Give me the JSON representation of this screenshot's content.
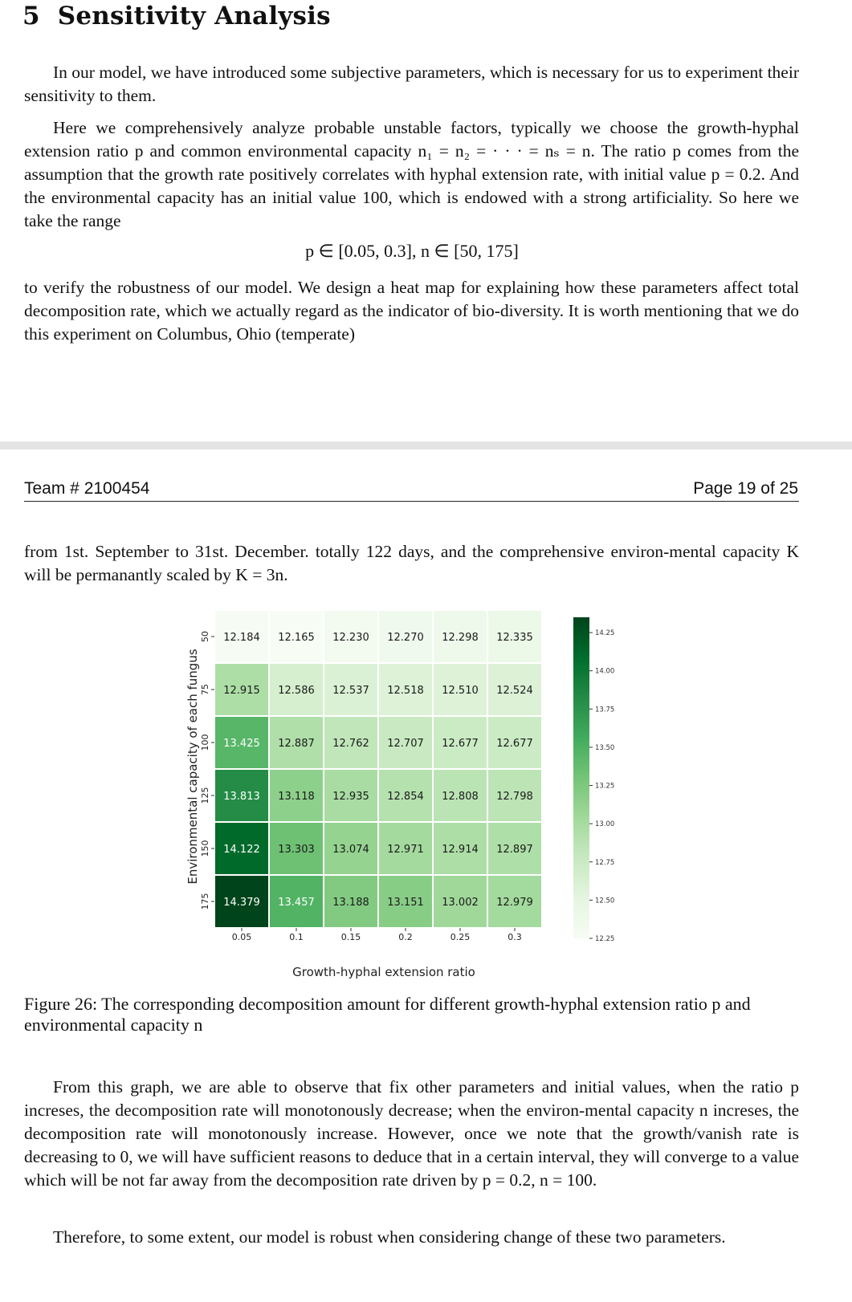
{
  "section": {
    "number": "5",
    "title": "Sensitivity Analysis"
  },
  "paragraphs": {
    "p1": "In our model, we have introduced some subjective parameters, which is necessary for us to experiment their sensitivity to them.",
    "p2": "Here we comprehensively analyze probable unstable factors, typically we choose the growth-hyphal extension ratio p and common environmental capacity n₁ = n₂ = · · · = nₛ = n. The ratio p comes from the assumption that the growth rate positively correlates with hyphal extension rate, with initial value p = 0.2. And the environmental capacity has an initial value 100, which is endowed with a strong artificiality. So here we take the range",
    "equation": "p ∈ [0.05, 0.3],    n ∈ [50, 175]",
    "p3": "to verify the robustness of our model. We design a heat map for explaining how these parameters affect total decomposition rate, which we actually regard as the indicator of bio-diversity. It is worth mentioning that we do this experiment on Columbus, Ohio (temperate)",
    "p4": "from 1st. September to 31st. December. totally 122 days, and the comprehensive environ-mental capacity K will be permanantly scaled by K = 3n.",
    "p5": "From this graph, we are able to observe that fix other parameters and initial values, when the ratio p increses, the decomposition rate will monotonously decrease; when the environ-mental capacity n increses, the decomposition rate will monotonously increase. However, once we note that the growth/vanish rate is decreasing to 0, we will have sufficient reasons to deduce that in a certain interval, they will converge to a value which will be not far away from the decomposition rate driven by p = 0.2, n = 100.",
    "p6": "Therefore, to some extent, our model is robust when considering change of these two parameters."
  },
  "header": {
    "team": "Team # 2100454",
    "page": "Page 19 of 25"
  },
  "caption": "Figure 26: The corresponding decomposition amount for different growth-hyphal extension ratio p and environmental capacity n",
  "chart_data": {
    "type": "heatmap",
    "xlabel": "Growth-hyphal extension ratio",
    "ylabel": "Environmental capacity of each fungus",
    "x_ticks": [
      "0.05",
      "0.1",
      "0.15",
      "0.2",
      "0.25",
      "0.3"
    ],
    "y_ticks": [
      "50",
      "75",
      "100",
      "125",
      "150",
      "175"
    ],
    "values": [
      [
        12.184,
        12.165,
        12.23,
        12.27,
        12.298,
        12.335
      ],
      [
        12.915,
        12.586,
        12.537,
        12.518,
        12.51,
        12.524
      ],
      [
        13.425,
        12.887,
        12.762,
        12.707,
        12.677,
        12.677
      ],
      [
        13.813,
        13.118,
        12.935,
        12.854,
        12.808,
        12.798
      ],
      [
        14.122,
        13.303,
        13.074,
        12.971,
        12.914,
        12.897
      ],
      [
        14.379,
        13.457,
        13.188,
        13.151,
        13.002,
        12.979
      ]
    ],
    "colorbar": {
      "ticks": [
        "14.25",
        "14.00",
        "13.75",
        "13.50",
        "13.25",
        "13.00",
        "12.75",
        "12.50",
        "12.25"
      ],
      "vmin": 12.165,
      "vmax": 14.379,
      "colormap": "Greens"
    }
  }
}
